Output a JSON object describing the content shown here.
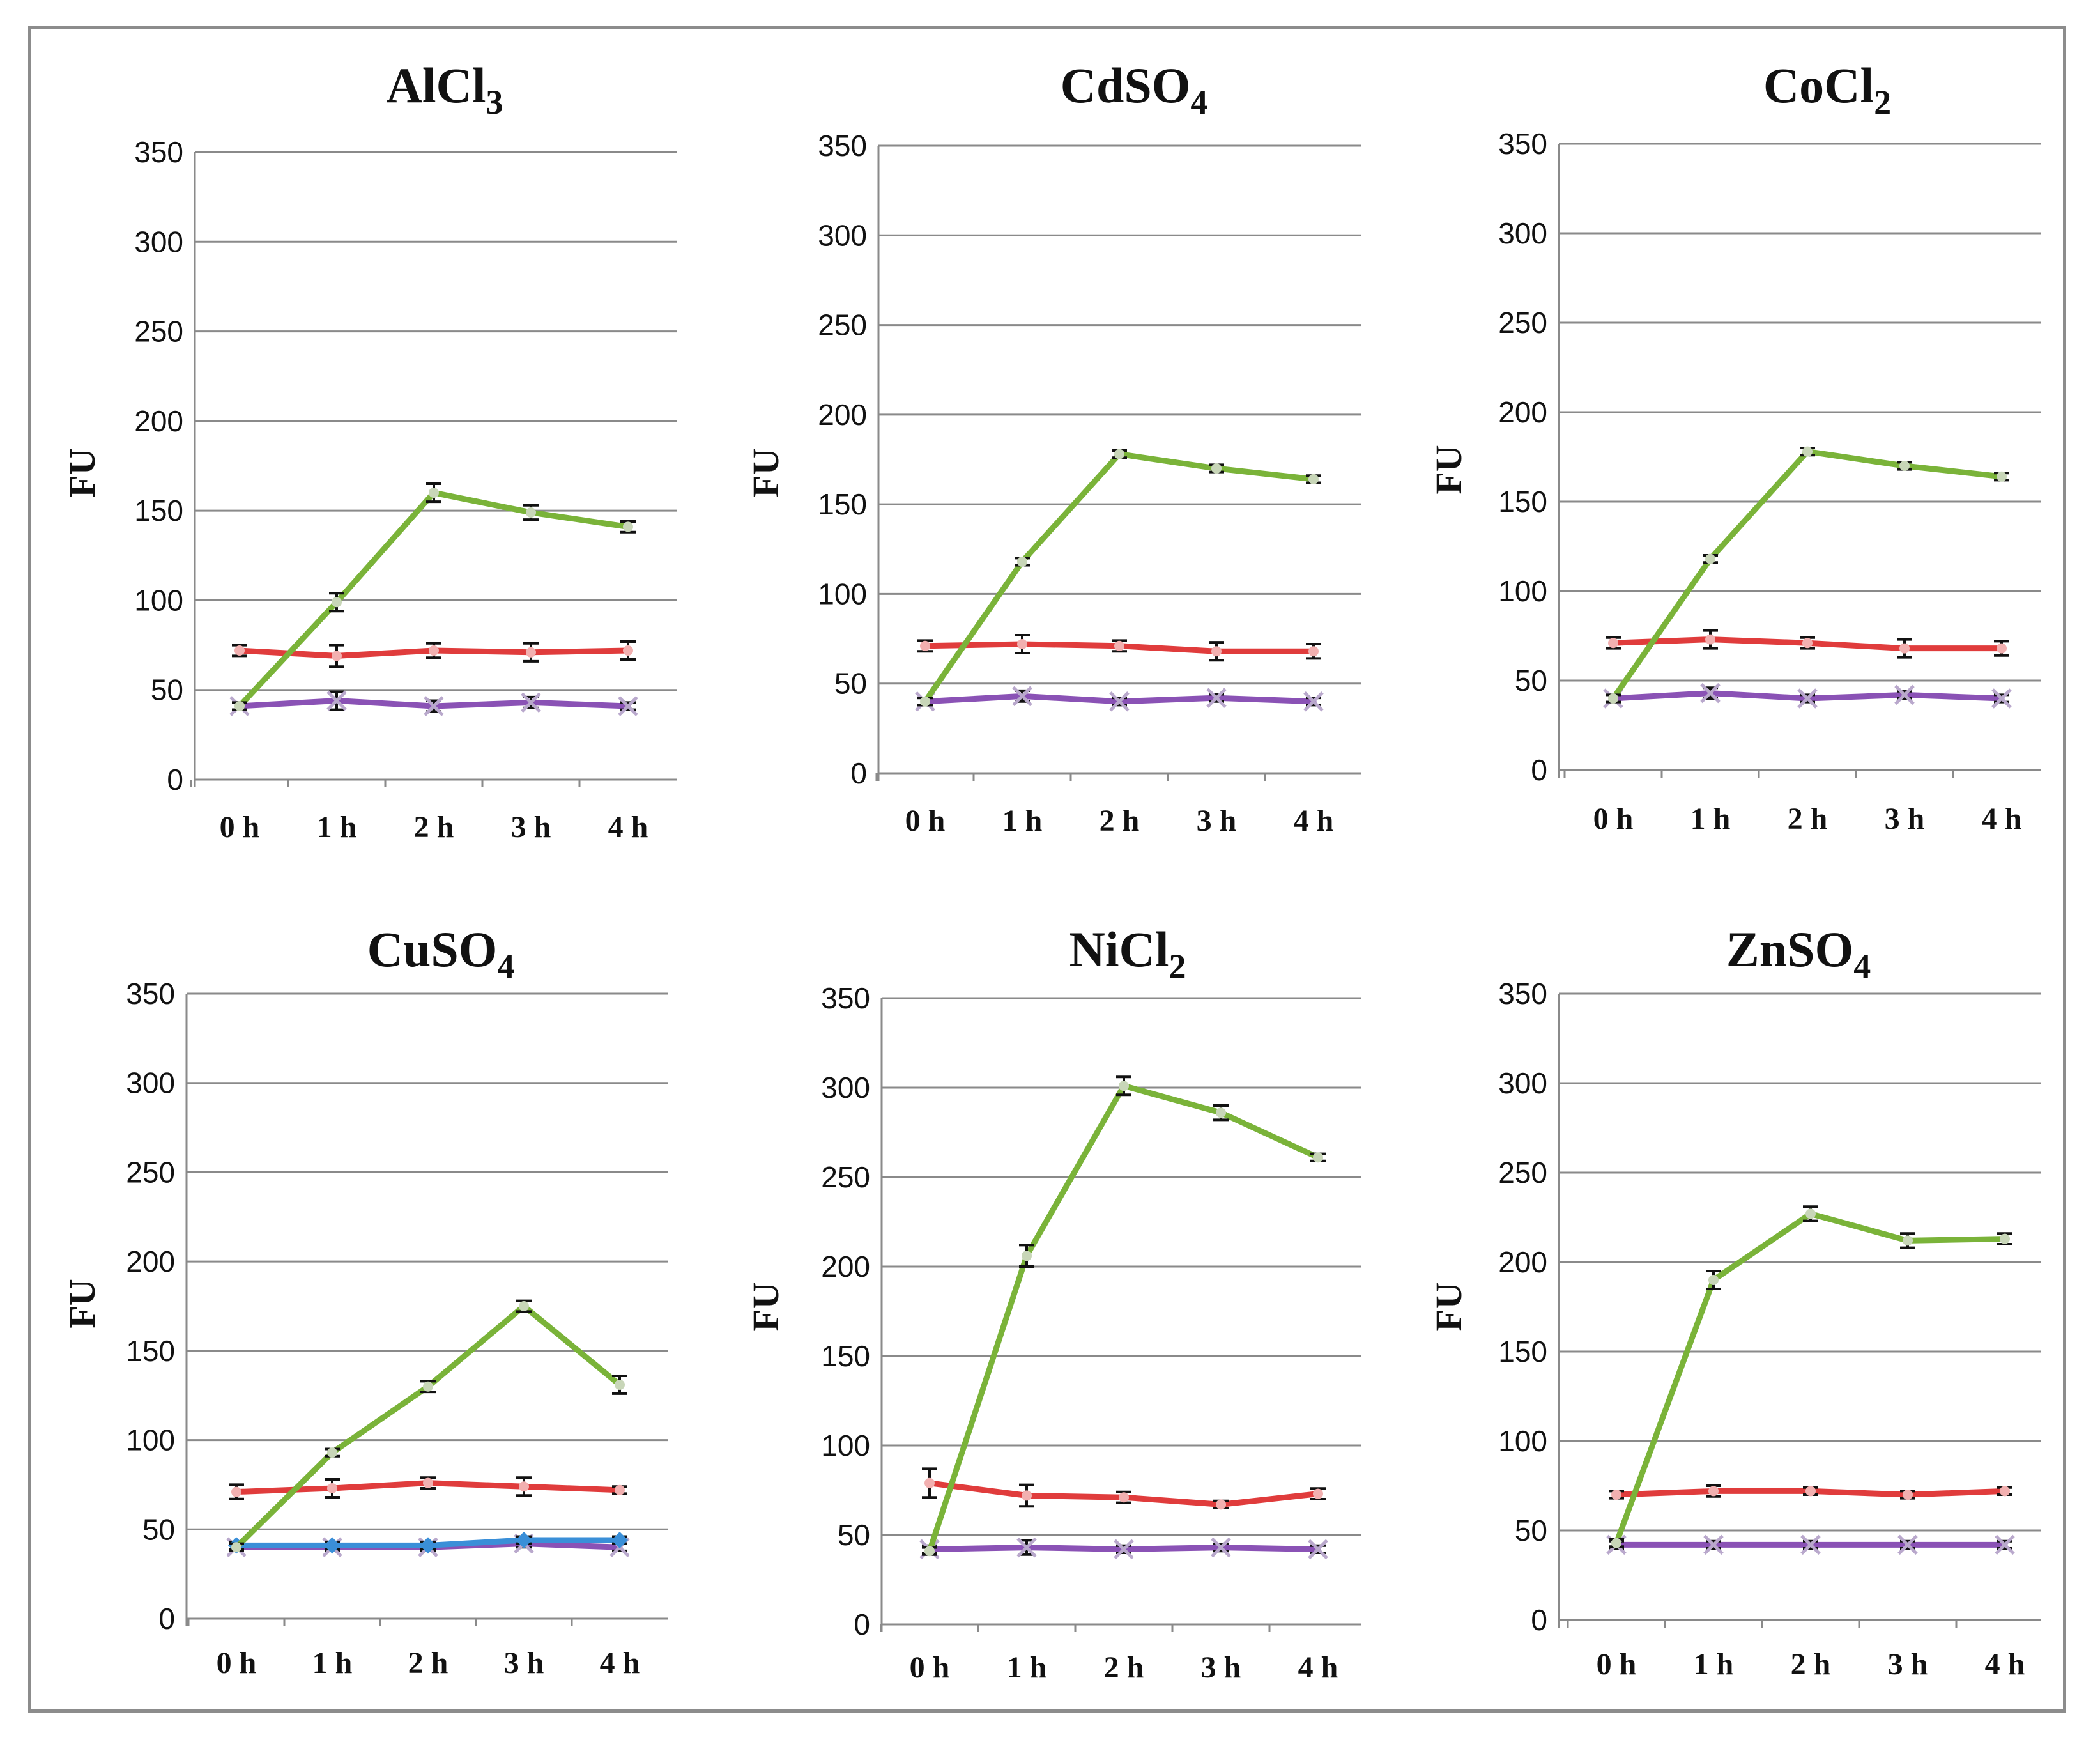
{
  "series_colors": {
    "green": "#7ab339",
    "red": "#e03c3c",
    "purple": "#8a52b5",
    "blue": "#3a8fd8"
  },
  "chart_data": [
    {
      "type": "line",
      "title": "AlCl",
      "title_sub": "3",
      "ylabel": "FU",
      "xlabel": "",
      "categories": [
        "0 h",
        "1 h",
        "2 h",
        "3 h",
        "4 h"
      ],
      "ylim": [
        0,
        350
      ],
      "yticks": [
        "0",
        "50",
        "100",
        "150",
        "200",
        "250",
        "300",
        "350"
      ],
      "series": [
        {
          "color": "green",
          "values": [
            41,
            99,
            160,
            149,
            141
          ],
          "errors": [
            2,
            5,
            5,
            4,
            3
          ]
        },
        {
          "color": "red",
          "values": [
            72,
            69,
            72,
            71,
            72
          ],
          "errors": [
            3,
            6,
            4,
            5,
            5
          ]
        },
        {
          "color": "purple",
          "values": [
            41,
            44,
            41,
            43,
            41
          ],
          "errors": [
            2,
            5,
            3,
            3,
            2
          ]
        }
      ]
    },
    {
      "type": "line",
      "title": "CdSO",
      "title_sub": "4",
      "ylabel": "FU",
      "xlabel": "",
      "categories": [
        "0 h",
        "1 h",
        "2 h",
        "3 h",
        "4 h"
      ],
      "ylim": [
        0,
        350
      ],
      "yticks": [
        "0",
        "50",
        "100",
        "150",
        "200",
        "250",
        "300",
        "350"
      ],
      "series": [
        {
          "color": "green",
          "values": [
            40,
            118,
            178,
            170,
            164
          ],
          "errors": [
            2,
            2,
            2,
            2,
            2
          ]
        },
        {
          "color": "red",
          "values": [
            71,
            72,
            71,
            68,
            68
          ],
          "errors": [
            3,
            5,
            3,
            5,
            4
          ]
        },
        {
          "color": "purple",
          "values": [
            40,
            43,
            40,
            42,
            40
          ],
          "errors": [
            2,
            3,
            2,
            2,
            2
          ]
        }
      ]
    },
    {
      "type": "line",
      "title": "CoCl",
      "title_sub": "2",
      "ylabel": "FU",
      "xlabel": "",
      "categories": [
        "0 h",
        "1 h",
        "2 h",
        "3 h",
        "4 h"
      ],
      "ylim": [
        0,
        350
      ],
      "yticks": [
        "0",
        "50",
        "100",
        "150",
        "200",
        "250",
        "300",
        "350"
      ],
      "series": [
        {
          "color": "green",
          "values": [
            40,
            118,
            178,
            170,
            164
          ],
          "errors": [
            2,
            2,
            2,
            2,
            2
          ]
        },
        {
          "color": "red",
          "values": [
            71,
            73,
            71,
            68,
            68
          ],
          "errors": [
            3,
            5,
            3,
            5,
            4
          ]
        },
        {
          "color": "purple",
          "values": [
            40,
            43,
            40,
            42,
            40
          ],
          "errors": [
            2,
            3,
            2,
            2,
            2
          ]
        }
      ]
    },
    {
      "type": "line",
      "title": "CuSO",
      "title_sub": "4",
      "ylabel": "FU",
      "xlabel": "",
      "categories": [
        "0 h",
        "1 h",
        "2 h",
        "3 h",
        "4 h"
      ],
      "ylim": [
        0,
        350
      ],
      "yticks": [
        "0",
        "50",
        "100",
        "150",
        "200",
        "250",
        "300",
        "350"
      ],
      "series": [
        {
          "color": "green",
          "values": [
            40,
            93,
            130,
            175,
            131
          ],
          "errors": [
            2,
            2,
            3,
            3,
            5
          ]
        },
        {
          "color": "red",
          "values": [
            71,
            73,
            76,
            74,
            72
          ],
          "errors": [
            4,
            5,
            3,
            5,
            2
          ]
        },
        {
          "color": "blue",
          "values": [
            41,
            41,
            41,
            44,
            44
          ],
          "errors": [
            2,
            2,
            2,
            2,
            2
          ]
        },
        {
          "color": "purple",
          "values": [
            40,
            40,
            40,
            42,
            40
          ],
          "errors": [
            2,
            2,
            2,
            2,
            2
          ]
        }
      ]
    },
    {
      "type": "line",
      "title": "NiCl",
      "title_sub": "2",
      "ylabel": "FU",
      "xlabel": "",
      "categories": [
        "0 h",
        "1 h",
        "2 h",
        "3 h",
        "4 h"
      ],
      "ylim": [
        0,
        350
      ],
      "yticks": [
        "0",
        "50",
        "100",
        "150",
        "200",
        "250",
        "300",
        "350"
      ],
      "series": [
        {
          "color": "green",
          "values": [
            41,
            206,
            301,
            286,
            261
          ],
          "errors": [
            2,
            6,
            5,
            4,
            2
          ]
        },
        {
          "color": "red",
          "values": [
            79,
            72,
            71,
            67,
            73
          ],
          "errors": [
            8,
            6,
            3,
            2,
            3
          ]
        },
        {
          "color": "purple",
          "values": [
            42,
            43,
            42,
            43,
            42
          ],
          "errors": [
            2,
            4,
            2,
            2,
            2
          ]
        }
      ]
    },
    {
      "type": "line",
      "title": "ZnSO",
      "title_sub": "4",
      "ylabel": "FU",
      "xlabel": "",
      "categories": [
        "0 h",
        "1 h",
        "2 h",
        "3 h",
        "4 h"
      ],
      "ylim": [
        0,
        350
      ],
      "yticks": [
        "0",
        "50",
        "100",
        "150",
        "200",
        "250",
        "300",
        "350"
      ],
      "series": [
        {
          "color": "green",
          "values": [
            43,
            190,
            227,
            212,
            213
          ],
          "errors": [
            2,
            5,
            4,
            4,
            3
          ]
        },
        {
          "color": "red",
          "values": [
            70,
            72,
            72,
            70,
            72
          ],
          "errors": [
            2,
            3,
            2,
            2,
            2
          ]
        },
        {
          "color": "purple",
          "values": [
            42,
            42,
            42,
            42,
            42
          ],
          "errors": [
            2,
            2,
            2,
            2,
            2
          ]
        }
      ]
    }
  ]
}
